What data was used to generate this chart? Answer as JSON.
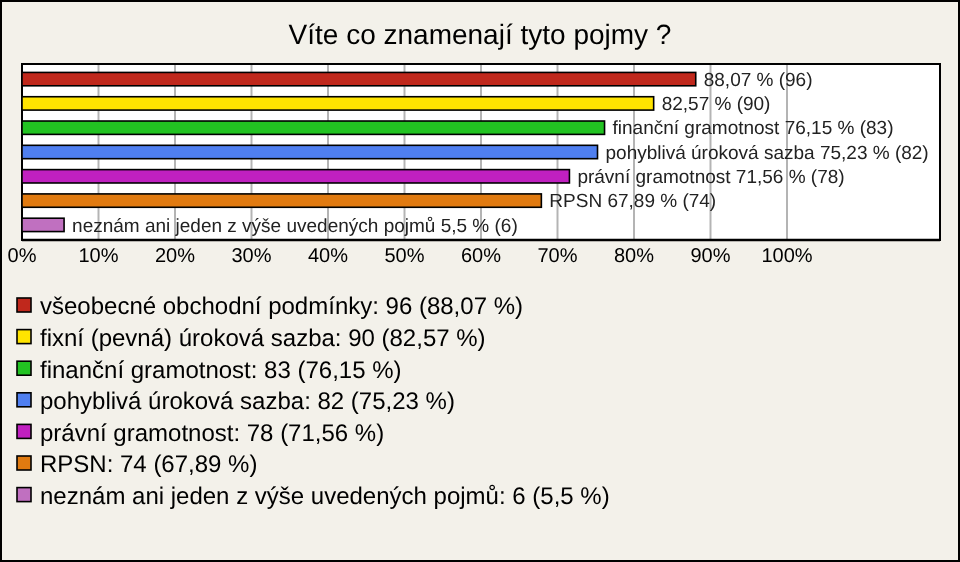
{
  "chart_data": {
    "type": "bar",
    "orientation": "horizontal",
    "stacked": true,
    "title": "Víte co znamenají tyto pojmy ?",
    "categories": [
      null,
      null,
      null,
      null,
      null,
      null,
      null
    ],
    "series": [
      {
        "name": "všeobecné obchodní podmínky: 96 (88,07 %)",
        "color": "#c0281c",
        "values": [
          88.07,
          null,
          null,
          null,
          null,
          null,
          null
        ],
        "value_labels": [
          "88,07 % (96)",
          null,
          null,
          null,
          null,
          null,
          null
        ]
      },
      {
        "name": "fixní (pevná) úroková sazba: 90 (82,57 %)",
        "color": "#ffe400",
        "values": [
          null,
          82.57,
          null,
          null,
          null,
          null,
          null
        ],
        "value_labels": [
          null,
          "82,57 % (90)",
          null,
          null,
          null,
          null,
          null
        ]
      },
      {
        "name": "finanční gramotnost: 83 (76,15 %)",
        "color": "#22c322",
        "values": [
          null,
          null,
          76.15,
          null,
          null,
          null,
          null
        ],
        "value_labels": [
          null,
          null,
          "finanční gramotnost 76,15 % (83)",
          null,
          null,
          null,
          null
        ]
      },
      {
        "name": "pohyblivá úroková sazba: 82 (75,23 %)",
        "color": "#4f7ff0",
        "values": [
          null,
          null,
          null,
          75.23,
          null,
          null,
          null
        ],
        "value_labels": [
          null,
          null,
          null,
          "pohyblivá úroková sazba 75,23 % (82)",
          null,
          null,
          null
        ]
      },
      {
        "name": "právní gramotnost: 78 (71,56 %)",
        "color": "#c020c0",
        "values": [
          null,
          null,
          null,
          null,
          71.56,
          null,
          null
        ],
        "value_labels": [
          null,
          null,
          null,
          null,
          "právní gramotnost 71,56 % (78)",
          null,
          null
        ]
      },
      {
        "name": "RPSN: 74 (67,89 %)",
        "color": "#e07a10",
        "values": [
          null,
          null,
          null,
          null,
          null,
          67.89,
          null
        ],
        "value_labels": [
          null,
          null,
          null,
          null,
          null,
          "RPSN 67,89 % (74)",
          null
        ]
      },
      {
        "name": "neznám ani jeden z výše uvedených pojmů: 6 (5,5 %)",
        "color": "#c070c0",
        "values": [
          null,
          null,
          null,
          null,
          null,
          null,
          5.5
        ],
        "value_labels": [
          null,
          null,
          null,
          null,
          null,
          null,
          "neznám ani jeden z výše uvedených pojmů 5,5 % (6)"
        ]
      }
    ],
    "xlim": [
      0,
      120
    ],
    "xticks": [
      {
        "value": 0,
        "label": "0%"
      },
      {
        "value": 10,
        "label": "10%"
      },
      {
        "value": 20,
        "label": "20%"
      },
      {
        "value": 30,
        "label": "30%"
      },
      {
        "value": 40,
        "label": "40%"
      },
      {
        "value": 50,
        "label": "50%"
      },
      {
        "value": 60,
        "label": "60%"
      },
      {
        "value": 70,
        "label": "70%"
      },
      {
        "value": 80,
        "label": "80%"
      },
      {
        "value": 90,
        "label": "90%"
      },
      {
        "value": 100,
        "label": "100%"
      }
    ],
    "grid": "x",
    "tick_labels": "x",
    "legend": "bottom"
  }
}
